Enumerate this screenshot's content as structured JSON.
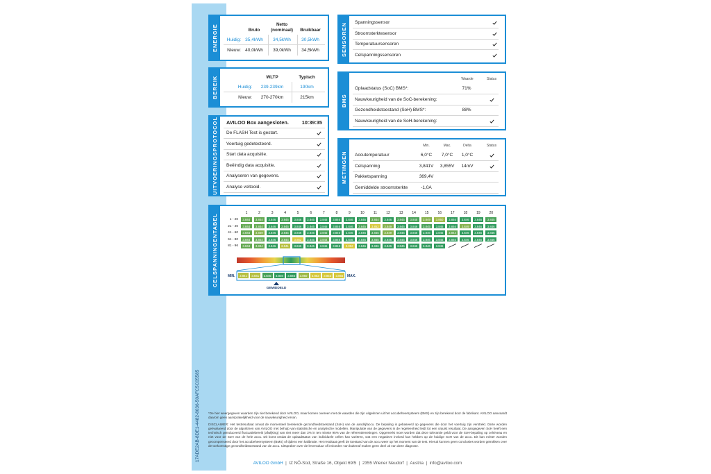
{
  "document_id": "17ADE2AB-8DE1-4482-8036-50AFC5C05585",
  "energie": {
    "title": "ENERGIE",
    "columns": [
      "Bruto",
      "Netto (nominaal)",
      "Bruikbaar"
    ],
    "rows": [
      {
        "label": "Huidig:",
        "values": [
          "35,4kWh",
          "34,5kWh",
          "30,5kWh"
        ]
      },
      {
        "label": "Nieuw:",
        "values": [
          "40,0kWh",
          "39,0kWh",
          "34,5kWh"
        ]
      }
    ]
  },
  "bereik": {
    "title": "BEREIK",
    "columns": [
      "WLTP",
      "Typisch"
    ],
    "rows": [
      {
        "label": "Huidig:",
        "values": [
          "239-239km",
          "190km"
        ]
      },
      {
        "label": "Nieuw:",
        "values": [
          "270-270km",
          "215km"
        ]
      }
    ]
  },
  "protocol": {
    "title": "UITVOERINGSPROTOCOL",
    "header": "AVILOO Box aangesloten.",
    "time": "10:39:35",
    "steps": [
      "De FLASH Test is gestart.",
      "Voertuig gedetecteerd.",
      "Start data acquisitie.",
      "Beëindig data acquisitie.",
      "Analyseren van gegevens.",
      "Analyse voltooid."
    ]
  },
  "sensoren": {
    "title": "SENSOREN",
    "items": [
      "Spanningssensor",
      "Stroomsterktesensor",
      "Temperatuursensoren",
      "Celspanningssensoren"
    ]
  },
  "bms": {
    "title": "BMS",
    "columns": [
      "Waarde",
      "Status"
    ],
    "rows": [
      {
        "label": "Oplaadstatus (SoC) BMS*:",
        "value": "71%"
      },
      {
        "label": "Nauwkeurigheid van de SoC-berekening:"
      },
      {
        "label": "Gezondheidstoestand (SoH) BMS*:",
        "value": "88%"
      },
      {
        "label": "Nauwkeurigheid van de SoH-berekening:"
      }
    ]
  },
  "metingen": {
    "title": "METINGEN",
    "columns": [
      "Min.",
      "Max.",
      "Delta",
      "Status"
    ],
    "rows": [
      {
        "label": "Accutemperatuur",
        "values": [
          "6,0°C",
          "7,0°C",
          "1,0°C"
        ]
      },
      {
        "label": "Celspanning",
        "values": [
          "3,841V",
          "3,855V",
          "14mV"
        ]
      },
      {
        "label": "Pakketspanning",
        "values": [
          "369,4V"
        ]
      },
      {
        "label": "Gemiddelde stroomsterkte",
        "values": [
          "-1,0A"
        ]
      }
    ]
  },
  "celspanning": {
    "title": "CELSPANNINGENTABEL",
    "columns": [
      "1",
      "2",
      "3",
      "4",
      "5",
      "6",
      "7",
      "8",
      "9",
      "10",
      "11",
      "12",
      "13",
      "14",
      "15",
      "16",
      "17",
      "18",
      "19",
      "20"
    ],
    "row_labels": [
      "1 - 20",
      "21 - 40",
      "41 - 60",
      "61 - 80",
      "81 - 96"
    ],
    "rows": [
      [
        "3.844",
        "3.844",
        "3.846",
        "3.845",
        "3.846",
        "3.846",
        "3.846",
        "3.846",
        "3.846",
        "3.846",
        "3.844",
        "3.846",
        "3.845",
        "3.845",
        "3.849",
        "3.850",
        "3.846",
        "3.846",
        "3.846",
        "3.845"
      ],
      [
        "3.844",
        "3.844",
        "3.846",
        "3.845",
        "3.846",
        "3.846",
        "3.846",
        "3.846",
        "3.846",
        "3.845",
        "3.852",
        "3.849",
        "3.846",
        "3.846",
        "3.845",
        "3.846",
        "3.846",
        "3.849",
        "3.846",
        "3.846"
      ],
      [
        "3.844",
        "3.849",
        "3.846",
        "3.845",
        "3.846",
        "3.846",
        "3.845",
        "3.846",
        "3.846",
        "3.846",
        "3.845",
        "3.849",
        "3.846",
        "3.846",
        "3.846",
        "3.846",
        "3.844",
        "3.846",
        "3.846",
        "3.846"
      ],
      [
        "3.844",
        "3.844",
        "3.846",
        "3.844",
        "3.852",
        "3.846",
        "3.844",
        "3.846",
        "3.846",
        "3.846",
        "3.845",
        "3.846",
        "3.846",
        "3.846",
        "3.846",
        "3.846",
        "3.846",
        "3.846",
        "3.846",
        "3.846"
      ],
      [
        "3.844",
        "3.844",
        "3.846",
        "3.841",
        "3.846",
        "3.846",
        "3.846",
        "3.846",
        "3.852",
        "3.846",
        "3.846",
        "3.846",
        "3.846",
        "3.846",
        "3.846",
        "3.846"
      ]
    ],
    "scale": [
      "3.841",
      "3.841",
      "3.845",
      "3.846",
      "3.846",
      "3.850",
      "3.852",
      "3.853",
      "3.855"
    ],
    "min_label": "MIN.",
    "max_label": "MAX.",
    "avg_label": "GEMIDDELD"
  },
  "notes": [
    "*De hier weergegeven waarden zijn niet berekend door AVILOO, maar komen overeen met de waarden die zijn uitgelezen uit het accubeheersysteem (BMS) en zijn berekend door de fabrikant. AVILOO aanvaardt daarom geen aansprakelijkheid voor de nauwkeurigheid ervan.",
    "DISCLAIMER: Het testresultaat omvat de momenteel berekende gezondheidstoestand (SoH) van de aandrijfaccu. De bepaling is gebaseerd op gegevens die door het voertuig zijn verstrekt. Deze worden geëvalueerd door de algoritmen van AVILOO met behulp van statistische en analytische modellen. Manipulatie van de gegevens in de regeleenheid leidt tot een onjuist resultaat. De aangegeven SoH heeft een technisch geïnduceerd fluctuatiebereik (afwijking) van niet meer dan 3% in ten minste 95% van de referentiemetingen. Opgemerkt moet worden dat deze tolerantie geldt voor de SoH-bepaling op celniveau en niet voor de SoH van de hele accu. Dit komt omdat de oplaadstatus van individuele cellen kan variëren, wat een negatieve invloed kan hebben op de huidige SoH van de accu. Dit kan echter worden gecompenseerd door het accubeheersysteem (BMS) of tijdens een kalibratie. Het resultaat geeft de toestand van de accu weer op het moment van de test. Hieruit kunnen geen conclusies worden getrokken over de toekomstige gezondheidstoestand van de accu. Uitspraken over de levensduur of invloeden van buitenaf maken geen deel uit van deze diagnose."
  ],
  "footer": {
    "company": "AVILOO GmbH",
    "parts": [
      "IZ NÖ-Süd, Straße 16, Objekt 69/5",
      "2355 Wiener Neudorf",
      "Austria",
      "info@aviloo.com"
    ]
  }
}
